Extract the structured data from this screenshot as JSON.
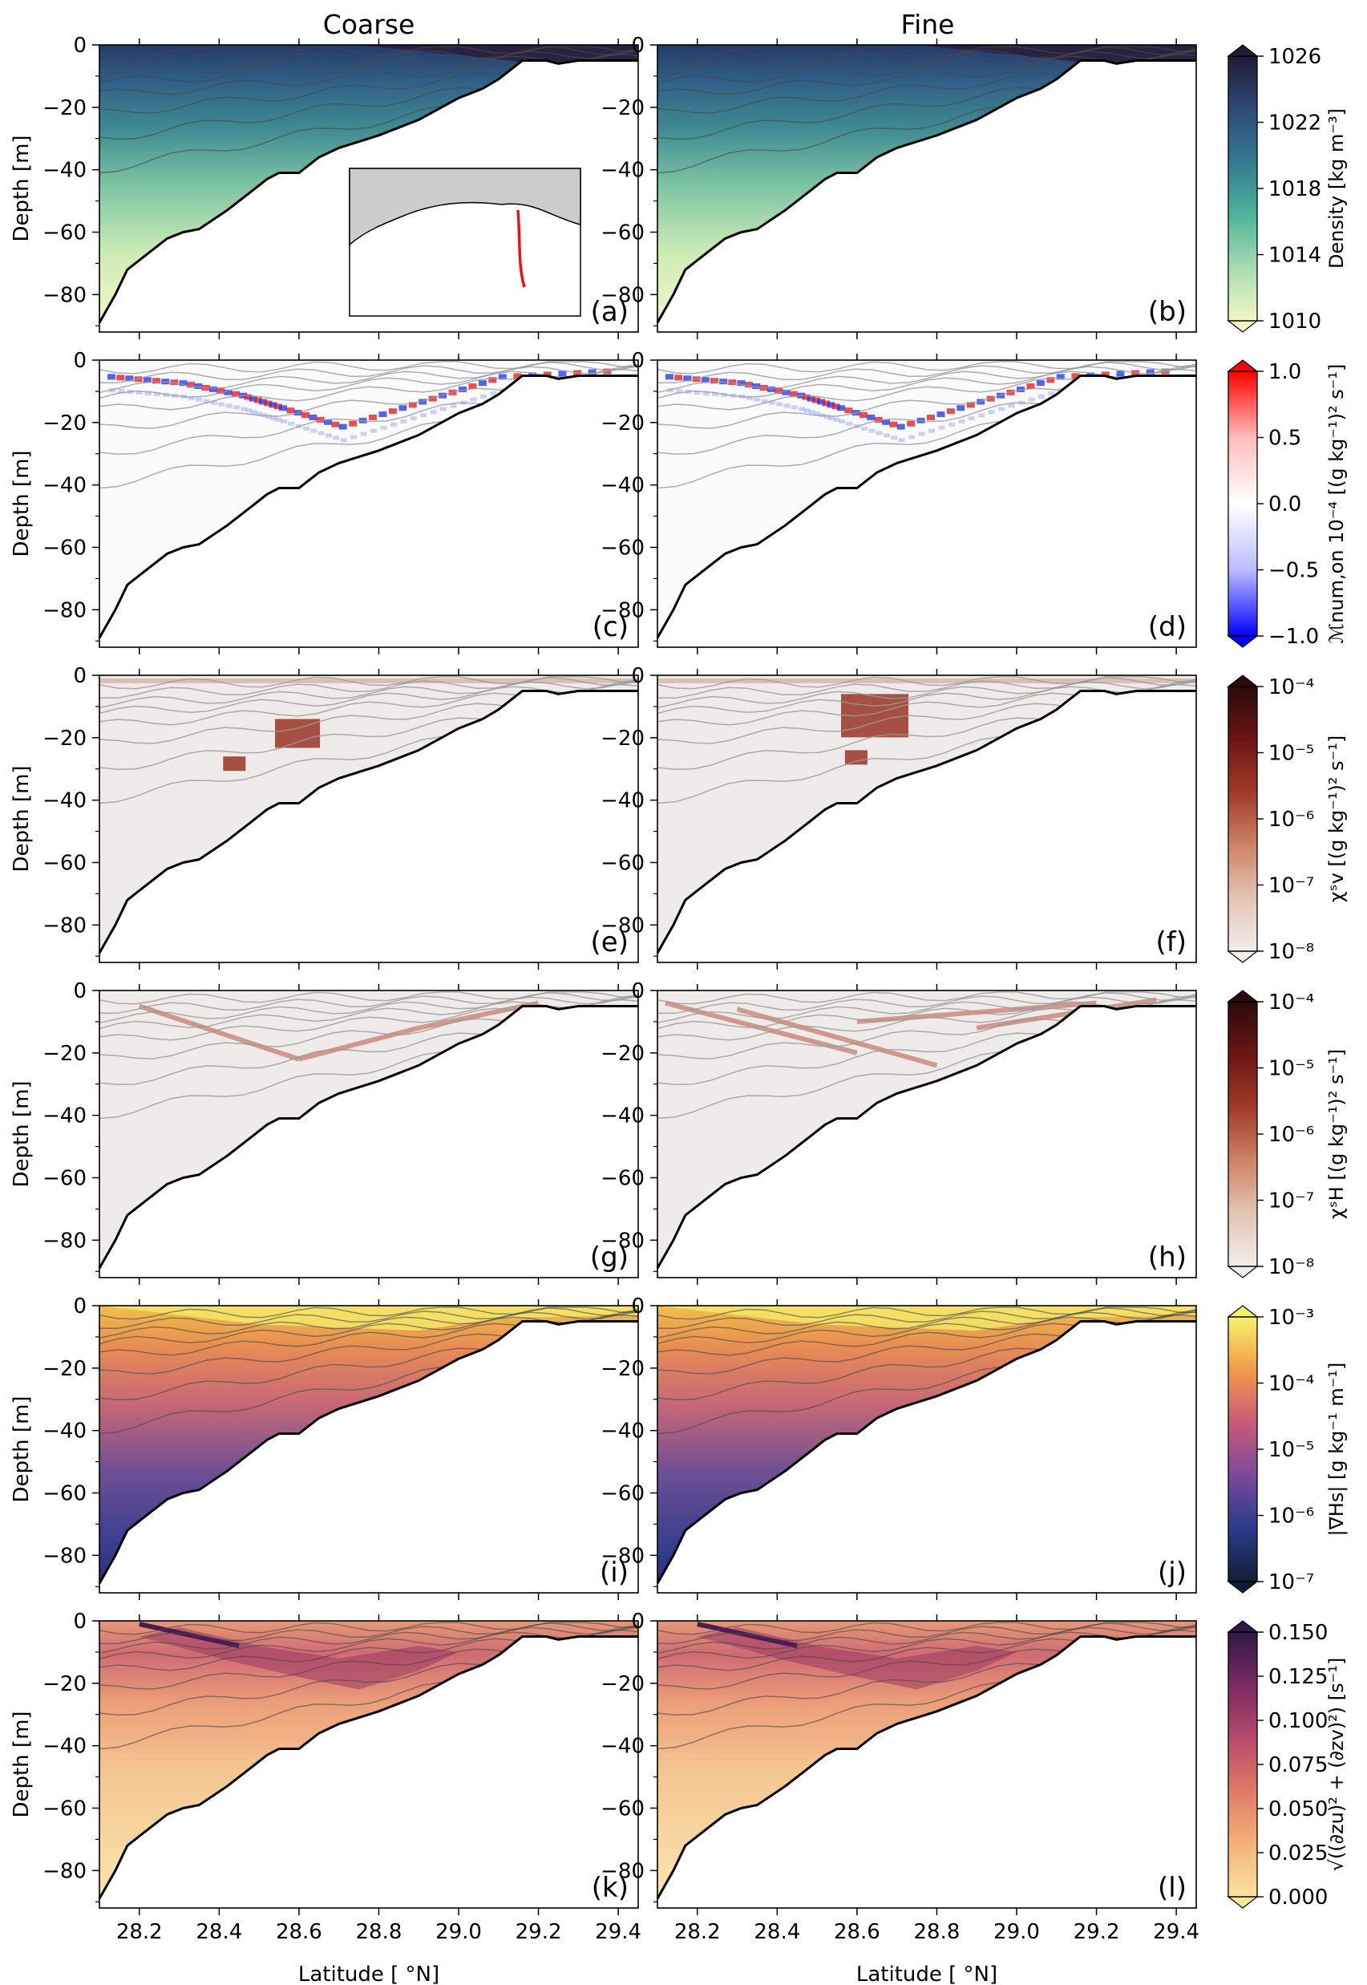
{
  "columns": [
    "Coarse",
    "Fine"
  ],
  "chart_data": {
    "type": "heatmap",
    "description_axes": {
      "xlabel": "Latitude [$^\\circ$N]",
      "xlim": [
        28.1,
        29.45
      ],
      "xticks": [
        "28.2",
        "28.4",
        "28.6",
        "28.8",
        "29.0",
        "29.2",
        "29.4"
      ],
      "ylabel": "Depth [m]",
      "ylim": [
        -92,
        0
      ],
      "yticks": [
        "0",
        "−20",
        "−40",
        "−60",
        "−80"
      ]
    },
    "xlabel_text": "Latitude [ °N]",
    "ylabel_text": "Depth [m]",
    "xticks": [
      "28.2",
      "28.4",
      "28.6",
      "28.8",
      "29.0",
      "29.2",
      "29.4"
    ],
    "xtick_values": [
      28.2,
      28.4,
      28.6,
      28.8,
      29.0,
      29.2,
      29.4
    ],
    "xlim": [
      28.1,
      29.45
    ],
    "yticks": [
      "0",
      "−20",
      "−40",
      "−60",
      "−80"
    ],
    "ytick_values": [
      0,
      -20,
      -40,
      -60,
      -80
    ],
    "ylim": [
      -92,
      0
    ],
    "bathymetry": [
      [
        28.1,
        -89
      ],
      [
        28.14,
        -80
      ],
      [
        28.17,
        -72
      ],
      [
        28.22,
        -67
      ],
      [
        28.27,
        -62
      ],
      [
        28.31,
        -60
      ],
      [
        28.35,
        -59
      ],
      [
        28.42,
        -53
      ],
      [
        28.48,
        -47
      ],
      [
        28.52,
        -43
      ],
      [
        28.55,
        -41
      ],
      [
        28.6,
        -41
      ],
      [
        28.65,
        -36
      ],
      [
        28.7,
        -33
      ],
      [
        28.8,
        -29
      ],
      [
        28.9,
        -24
      ],
      [
        29.0,
        -17
      ],
      [
        29.06,
        -14
      ],
      [
        29.1,
        -11
      ],
      [
        29.14,
        -7
      ],
      [
        29.16,
        -5
      ],
      [
        29.22,
        -5
      ],
      [
        29.25,
        -6
      ],
      [
        29.3,
        -5
      ],
      [
        29.45,
        -5
      ]
    ],
    "panels": [
      {
        "tag": "(a)",
        "row": 0,
        "col": 0,
        "field": "density"
      },
      {
        "tag": "(b)",
        "row": 0,
        "col": 1,
        "field": "density"
      },
      {
        "tag": "(c)",
        "row": 1,
        "col": 0,
        "field": "mixing"
      },
      {
        "tag": "(d)",
        "row": 1,
        "col": 1,
        "field": "mixing"
      },
      {
        "tag": "(e)",
        "row": 2,
        "col": 0,
        "field": "chi_v"
      },
      {
        "tag": "(f)",
        "row": 2,
        "col": 1,
        "field": "chi_v"
      },
      {
        "tag": "(g)",
        "row": 3,
        "col": 0,
        "field": "chi_h"
      },
      {
        "tag": "(h)",
        "row": 3,
        "col": 1,
        "field": "chi_h"
      },
      {
        "tag": "(i)",
        "row": 4,
        "col": 0,
        "field": "grad_s"
      },
      {
        "tag": "(j)",
        "row": 4,
        "col": 1,
        "field": "grad_s"
      },
      {
        "tag": "(k)",
        "row": 5,
        "col": 0,
        "field": "shear"
      },
      {
        "tag": "(l)",
        "row": 5,
        "col": 1,
        "field": "shear"
      }
    ],
    "colorbars": [
      {
        "label": "Density [kg m⁻³]",
        "ticks": [
          "1010",
          "1014",
          "1018",
          "1022",
          "1026"
        ],
        "range": [
          1010,
          1026
        ],
        "scale": "linear",
        "colors": [
          "#f4f7c4",
          "#a7dcb0",
          "#4fb39a",
          "#357a91",
          "#2d4a7a",
          "#221a33"
        ]
      },
      {
        "label": "ℳnum,on 10⁻⁴ [(g kg⁻¹)² s⁻¹]",
        "ticks": [
          "−1.0",
          "−0.5",
          "0.0",
          "0.5",
          "1.0"
        ],
        "range": [
          -1.0,
          1.0
        ],
        "scale": "linear",
        "colors": [
          "#0000ff",
          "#bcbcff",
          "#ffffff",
          "#ffbcbc",
          "#ff0000"
        ]
      },
      {
        "label": "χˢv [(g kg⁻¹)² s⁻¹]",
        "ticks": [
          "10⁻⁸",
          "10⁻⁷",
          "10⁻⁶",
          "10⁻⁵",
          "10⁻⁴"
        ],
        "range": [
          -8,
          -4
        ],
        "scale": "log",
        "colors": [
          "#f1eeec",
          "#e3c4b4",
          "#cd8466",
          "#a03a28",
          "#6b1616",
          "#2a0a0a"
        ]
      },
      {
        "label": "χˢH [(g kg⁻¹)² s⁻¹]",
        "ticks": [
          "10⁻⁸",
          "10⁻⁷",
          "10⁻⁶",
          "10⁻⁵",
          "10⁻⁴"
        ],
        "range": [
          -8,
          -4
        ],
        "scale": "log",
        "colors": [
          "#f1eeec",
          "#e3c4b4",
          "#cd8466",
          "#a03a28",
          "#6b1616",
          "#2a0a0a"
        ]
      },
      {
        "label": "|∇Hs| [g kg⁻¹ m⁻¹]",
        "ticks": [
          "10⁻⁷",
          "10⁻⁶",
          "10⁻⁵",
          "10⁻⁴",
          "10⁻³"
        ],
        "range": [
          -7,
          -3
        ],
        "scale": "log",
        "colors": [
          "#0f1f33",
          "#2c3a8c",
          "#7a4a9a",
          "#c95a7a",
          "#f29a4a",
          "#f7f26a"
        ]
      },
      {
        "label": "√((∂zu)² + (∂zv)²) [s⁻¹]",
        "ticks": [
          "0.000",
          "0.025",
          "0.050",
          "0.075",
          "0.100",
          "0.125",
          "0.150"
        ],
        "range": [
          0,
          0.15
        ],
        "scale": "linear",
        "colors": [
          "#fbe3a0",
          "#f3b27a",
          "#e07a66",
          "#b64a6a",
          "#7a2a62",
          "#2e1a44"
        ]
      }
    ]
  },
  "inset": {
    "track_color": "#e8141a",
    "land_color": "#cccccc"
  }
}
